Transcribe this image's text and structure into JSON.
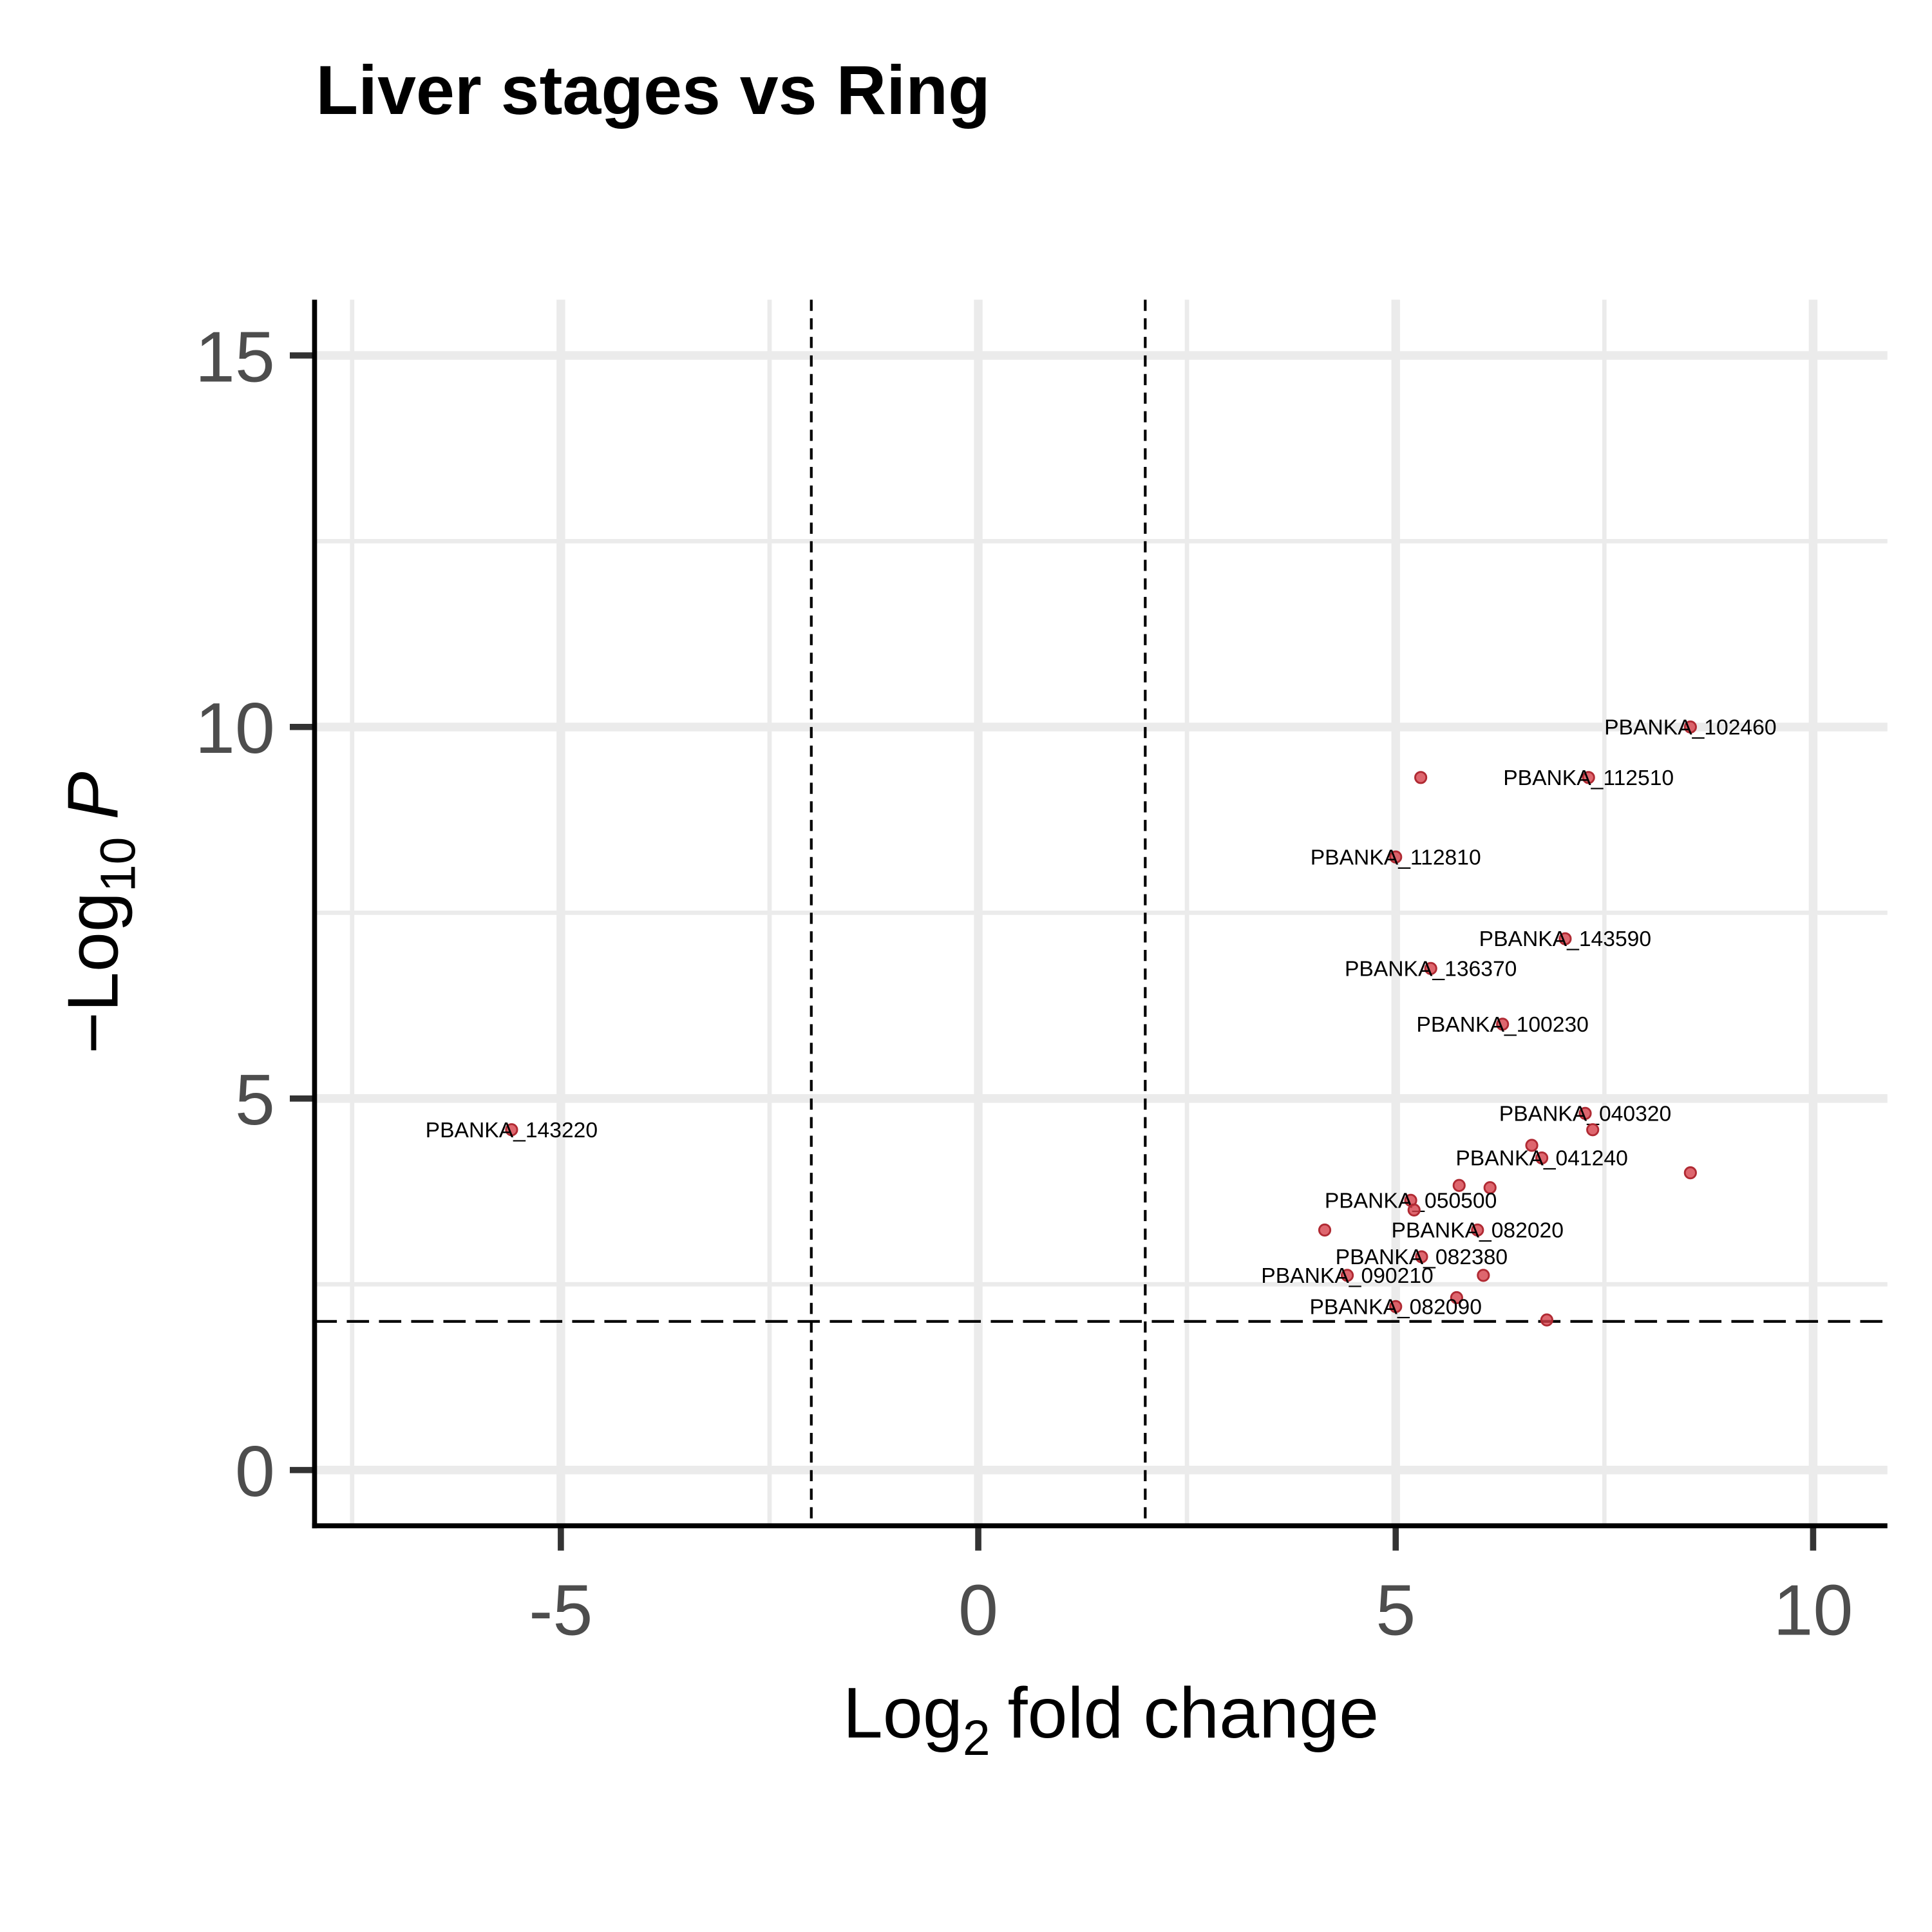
{
  "chart_data": {
    "type": "scatter",
    "title": "Liver stages vs Ring",
    "x_label": {
      "base": "Log",
      "sub": "2",
      "rest": "fold change"
    },
    "y_label": {
      "prefix": "−Log",
      "sub": "10",
      "rest": "P"
    },
    "x": [
      8.53,
      5.3,
      7.31,
      5.0,
      7.03,
      5.42,
      6.28,
      7.27,
      7.36,
      -5.59,
      6.63,
      6.75,
      8.53,
      5.76,
      6.13,
      5.18,
      5.22,
      4.15,
      5.98,
      5.31,
      4.42,
      6.05,
      5.73,
      5.0,
      6.81
    ],
    "values": [
      10.0,
      9.32,
      9.32,
      8.25,
      7.15,
      6.75,
      6.0,
      4.8,
      4.58,
      4.58,
      4.37,
      4.2,
      4.0,
      3.83,
      3.8,
      3.63,
      3.5,
      3.23,
      3.23,
      2.87,
      2.62,
      2.62,
      2.32,
      2.2,
      2.02
    ],
    "labels": [
      "PBANKA_102460",
      null,
      "PBANKA_112510",
      "PBANKA_112810",
      "PBANKA_143590",
      "PBANKA_136370",
      "PBANKA_100230",
      "PBANKA_040320",
      null,
      "PBANKA_143220",
      null,
      "PBANKA_041240",
      null,
      null,
      null,
      "PBANKA_050500",
      null,
      null,
      "PBANKA_082020",
      "PBANKA_082380",
      "PBANKA_090210",
      null,
      null,
      "PBANKA_082090",
      null
    ],
    "color": "#d6404a",
    "xlim": [
      -7.95,
      10.89
    ],
    "ylim": [
      -0.75,
      15.75
    ],
    "xticks": [
      -5,
      0,
      5,
      10
    ],
    "yticks": [
      0,
      5,
      10,
      15
    ],
    "grid": true,
    "cutoffs": {
      "x": [
        -2,
        2
      ],
      "y": 2
    }
  }
}
